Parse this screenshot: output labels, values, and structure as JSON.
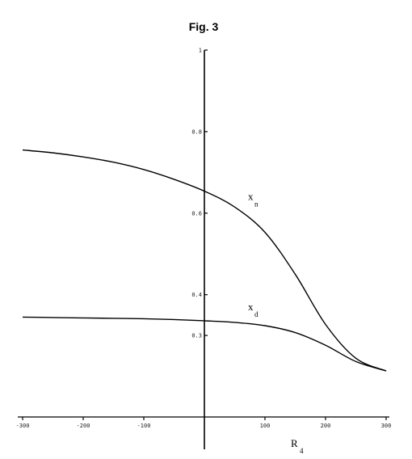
{
  "chart_data": {
    "type": "line",
    "title": "Fig. 3",
    "xlabel": "R",
    "xlabel_sub": "4",
    "xlim": [
      -300,
      300
    ],
    "ylim": [
      0.1,
      1.0
    ],
    "x_ticks": [
      -300,
      -200,
      -100,
      100,
      200,
      300
    ],
    "x_tick_labels": [
      "-300",
      "-200",
      "-100",
      "100",
      "200",
      "300"
    ],
    "y_ticks": [
      0.3,
      0.4,
      0.6,
      0.8,
      1.0
    ],
    "y_tick_labels": [
      "0.3",
      "0.4",
      "0.6",
      "0.8",
      "1"
    ],
    "grid": false,
    "legend": "none",
    "series": [
      {
        "name": "x",
        "name_sub": "n",
        "x": [
          -300,
          -250,
          -200,
          -150,
          -100,
          -50,
          0,
          50,
          100,
          150,
          200,
          250,
          300
        ],
        "values": [
          0.755,
          0.748,
          0.738,
          0.725,
          0.707,
          0.683,
          0.654,
          0.615,
          0.553,
          0.45,
          0.327,
          0.244,
          0.213
        ]
      },
      {
        "name": "x",
        "name_sub": "d",
        "x": [
          -300,
          -250,
          -200,
          -150,
          -100,
          -50,
          0,
          50,
          100,
          150,
          200,
          250,
          300
        ],
        "values": [
          0.345,
          0.344,
          0.343,
          0.342,
          0.341,
          0.339,
          0.336,
          0.332,
          0.324,
          0.307,
          0.276,
          0.236,
          0.213
        ]
      }
    ]
  }
}
